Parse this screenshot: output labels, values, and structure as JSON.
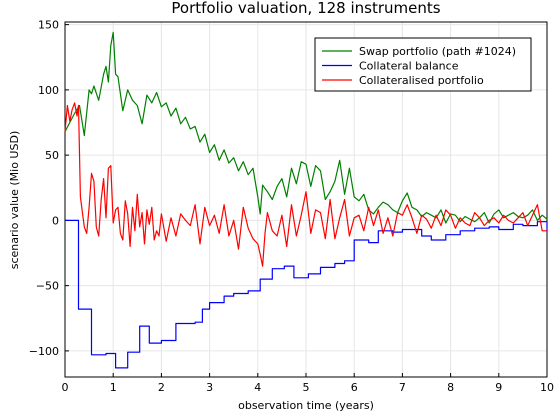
{
  "chart_data": {
    "type": "line",
    "title": "Portfolio valuation, 128 instruments",
    "xlabel": "observation time (years)",
    "ylabel": "scenario value (Mio USD)",
    "xlim": [
      0,
      10
    ],
    "ylim": [
      -120,
      152
    ],
    "xticks": [
      0,
      1,
      2,
      3,
      4,
      5,
      6,
      7,
      8,
      9,
      10
    ],
    "yticks": [
      -100,
      -50,
      0,
      50,
      100,
      150
    ],
    "grid": true,
    "legend_position": "top-right",
    "series": [
      {
        "name": "Swap portfolio (path #1024)",
        "color": "#008000",
        "style": "line",
        "x": [
          0,
          0.1,
          0.2,
          0.3,
          0.4,
          0.5,
          0.55,
          0.6,
          0.7,
          0.8,
          0.85,
          0.9,
          0.95,
          1.0,
          1.05,
          1.1,
          1.2,
          1.3,
          1.4,
          1.5,
          1.6,
          1.7,
          1.8,
          1.9,
          2.0,
          2.1,
          2.2,
          2.3,
          2.4,
          2.5,
          2.6,
          2.7,
          2.8,
          2.9,
          3.0,
          3.1,
          3.2,
          3.3,
          3.4,
          3.5,
          3.6,
          3.7,
          3.8,
          3.9,
          4.0,
          4.05,
          4.1,
          4.2,
          4.3,
          4.4,
          4.5,
          4.6,
          4.7,
          4.8,
          4.9,
          5.0,
          5.1,
          5.2,
          5.3,
          5.4,
          5.5,
          5.6,
          5.7,
          5.8,
          5.9,
          6.0,
          6.1,
          6.2,
          6.3,
          6.4,
          6.5,
          6.6,
          6.7,
          6.8,
          6.9,
          7.0,
          7.1,
          7.2,
          7.3,
          7.4,
          7.5,
          7.6,
          7.7,
          7.8,
          7.9,
          8.0,
          8.1,
          8.2,
          8.3,
          8.4,
          8.5,
          8.6,
          8.7,
          8.8,
          8.9,
          9.0,
          9.1,
          9.2,
          9.3,
          9.4,
          9.5,
          9.6,
          9.7,
          9.8,
          9.9,
          10.0
        ],
        "y": [
          68,
          75,
          82,
          88,
          65,
          100,
          97,
          103,
          92,
          112,
          118,
          106,
          134,
          144,
          112,
          110,
          84,
          100,
          92,
          88,
          74,
          96,
          90,
          98,
          87,
          90,
          80,
          86,
          74,
          79,
          70,
          72,
          60,
          66,
          52,
          58,
          46,
          54,
          44,
          48,
          38,
          45,
          35,
          40,
          18,
          5,
          27,
          22,
          16,
          26,
          32,
          18,
          40,
          28,
          45,
          43,
          26,
          42,
          38,
          16,
          22,
          30,
          46,
          20,
          40,
          18,
          15,
          20,
          8,
          5,
          10,
          14,
          12,
          8,
          6,
          15,
          21,
          10,
          8,
          3,
          6,
          4,
          2,
          8,
          -2,
          5,
          4,
          -1,
          3,
          1,
          -1,
          2,
          6,
          -2,
          5,
          8,
          2,
          4,
          6,
          3,
          2,
          4,
          8,
          0,
          4,
          1
        ]
      },
      {
        "name": "Collateral balance",
        "color": "#0000ff",
        "style": "step",
        "x": [
          0,
          0.28,
          0.55,
          0.85,
          1.05,
          1.3,
          1.55,
          1.75,
          2.0,
          2.3,
          2.7,
          2.85,
          3.0,
          3.3,
          3.5,
          3.8,
          4.05,
          4.3,
          4.55,
          4.75,
          5.05,
          5.3,
          5.6,
          5.8,
          6.0,
          6.3,
          6.5,
          6.8,
          7.0,
          7.4,
          7.6,
          7.9,
          8.2,
          8.5,
          8.8,
          9.0,
          9.3,
          9.5,
          9.8,
          10.0
        ],
        "y": [
          0,
          -68,
          -103,
          -102,
          -113,
          -101,
          -81,
          -94,
          -92,
          -79,
          -78,
          -68,
          -63,
          -58,
          -56,
          -54,
          -45,
          -37,
          -35,
          -44,
          -41,
          -36,
          -33,
          -31,
          -15,
          -17,
          -8,
          -9,
          -7,
          -12,
          -15,
          -11,
          -8,
          -6,
          -5,
          -7,
          -3,
          -4,
          -1,
          -9
        ]
      },
      {
        "name": "Collateralised portfolio",
        "color": "#ff0000",
        "style": "line",
        "x": [
          0,
          0.05,
          0.1,
          0.15,
          0.2,
          0.25,
          0.28,
          0.32,
          0.4,
          0.45,
          0.5,
          0.55,
          0.6,
          0.65,
          0.7,
          0.75,
          0.8,
          0.85,
          0.9,
          0.95,
          1.0,
          1.05,
          1.1,
          1.15,
          1.2,
          1.25,
          1.3,
          1.35,
          1.4,
          1.45,
          1.5,
          1.55,
          1.6,
          1.65,
          1.7,
          1.75,
          1.8,
          1.85,
          1.9,
          1.95,
          2.0,
          2.1,
          2.2,
          2.3,
          2.4,
          2.5,
          2.6,
          2.7,
          2.8,
          2.9,
          3.0,
          3.1,
          3.2,
          3.3,
          3.4,
          3.5,
          3.6,
          3.7,
          3.8,
          3.9,
          4.0,
          4.05,
          4.1,
          4.15,
          4.2,
          4.3,
          4.4,
          4.5,
          4.6,
          4.7,
          4.8,
          4.9,
          5.0,
          5.1,
          5.2,
          5.3,
          5.4,
          5.5,
          5.6,
          5.7,
          5.8,
          5.9,
          6.0,
          6.1,
          6.2,
          6.3,
          6.4,
          6.5,
          6.6,
          6.7,
          6.8,
          6.9,
          7.0,
          7.1,
          7.2,
          7.3,
          7.4,
          7.5,
          7.6,
          7.7,
          7.8,
          7.9,
          8.0,
          8.1,
          8.2,
          8.3,
          8.4,
          8.5,
          8.6,
          8.7,
          8.8,
          8.9,
          9.0,
          9.1,
          9.2,
          9.3,
          9.4,
          9.5,
          9.6,
          9.7,
          9.8,
          9.9,
          10.0
        ],
        "y": [
          68,
          88,
          76,
          85,
          90,
          80,
          88,
          18,
          -5,
          -10,
          10,
          36,
          30,
          -5,
          -12,
          16,
          32,
          2,
          40,
          42,
          -2,
          8,
          10,
          -10,
          -15,
          15,
          5,
          -20,
          10,
          -8,
          20,
          -5,
          6,
          -18,
          8,
          -3,
          10,
          -15,
          -8,
          -12,
          5,
          -16,
          2,
          -12,
          5,
          0,
          -4,
          12,
          -18,
          10,
          -4,
          4,
          -10,
          12,
          -12,
          0,
          -22,
          10,
          -6,
          -14,
          -18,
          -26,
          -35,
          -10,
          6,
          -8,
          -12,
          4,
          -20,
          12,
          -12,
          4,
          22,
          -10,
          8,
          6,
          -14,
          16,
          -14,
          2,
          16,
          -12,
          2,
          4,
          -8,
          10,
          -4,
          8,
          -10,
          2,
          -12,
          6,
          4,
          12,
          2,
          -10,
          4,
          1,
          -6,
          4,
          -4,
          8,
          4,
          -6,
          2,
          -2,
          -4,
          6,
          2,
          -4,
          0,
          2,
          -2,
          4,
          0,
          -2,
          2,
          6,
          -4,
          4,
          12,
          -8,
          -8
        ]
      }
    ]
  }
}
